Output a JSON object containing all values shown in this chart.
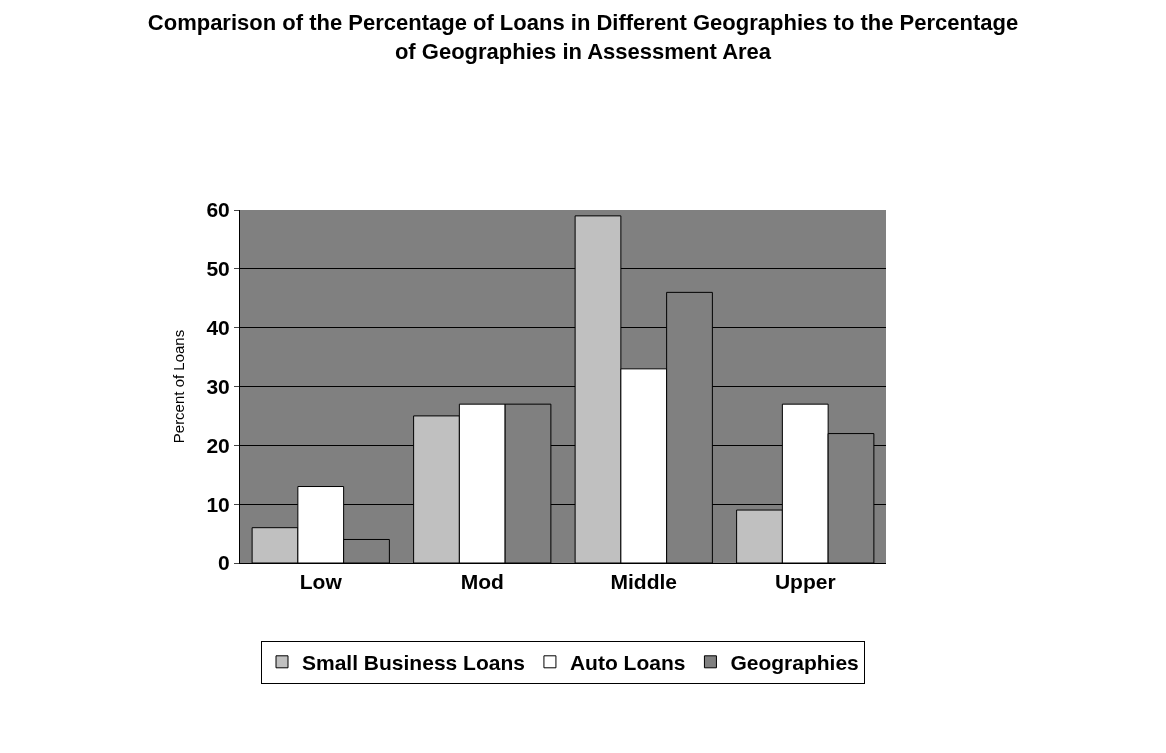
{
  "chart_data": {
    "type": "bar",
    "title": "Comparison of the Percentage of Loans in Different Geographies to the Percentage of Geographies in Assessment Area",
    "ylabel": "Percent of Loans",
    "categories": [
      "Low",
      "Mod",
      "Middle",
      "Upper"
    ],
    "series": [
      {
        "name": "Small Business Loans",
        "color": "#c0c0c0",
        "values": [
          6,
          25,
          59,
          9
        ]
      },
      {
        "name": "Auto Loans",
        "color": "#ffffff",
        "values": [
          13,
          27,
          33,
          27
        ]
      },
      {
        "name": "Geographies",
        "color": "#808080",
        "values": [
          4,
          27,
          46,
          22
        ]
      }
    ],
    "ylim": [
      0,
      60
    ],
    "yticks": [
      0,
      10,
      20,
      30,
      40,
      50,
      60
    ],
    "grid": "y",
    "legend": "bottom"
  }
}
